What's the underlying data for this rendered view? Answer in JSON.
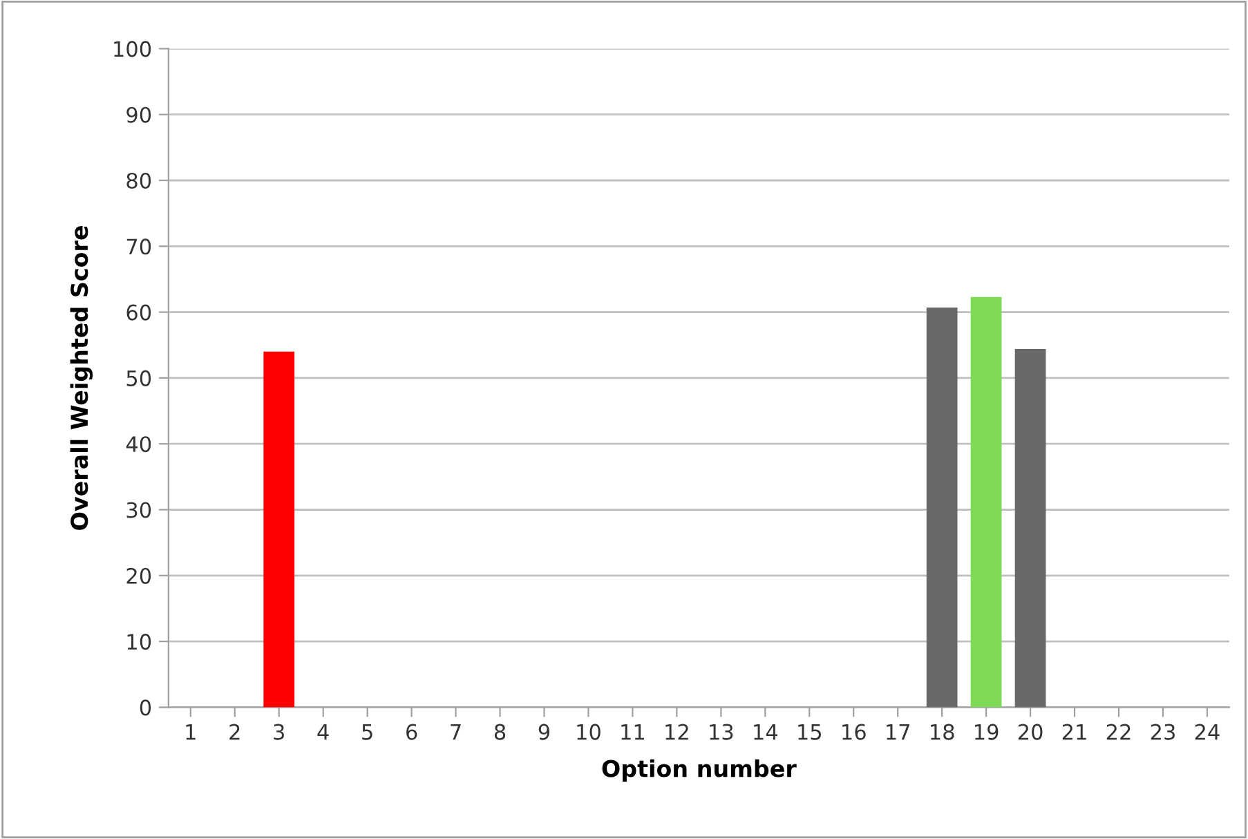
{
  "chart_data": {
    "type": "bar",
    "xlabel": "Option number",
    "ylabel": "Overall Weighted Score",
    "categories": [
      "1",
      "2",
      "3",
      "4",
      "5",
      "6",
      "7",
      "8",
      "9",
      "10",
      "11",
      "12",
      "13",
      "14",
      "15",
      "16",
      "17",
      "18",
      "19",
      "20",
      "21",
      "22",
      "23",
      "24"
    ],
    "values": [
      null,
      null,
      54.0,
      null,
      null,
      null,
      null,
      null,
      null,
      null,
      null,
      null,
      null,
      null,
      null,
      null,
      null,
      60.7,
      62.3,
      54.4,
      null,
      null,
      null,
      null
    ],
    "colors": [
      "#696969",
      "#696969",
      "#ff0000",
      "#696969",
      "#696969",
      "#696969",
      "#696969",
      "#696969",
      "#696969",
      "#696969",
      "#696969",
      "#696969",
      "#696969",
      "#696969",
      "#696969",
      "#696969",
      "#696969",
      "#696969",
      "#7ed957",
      "#696969",
      "#696969",
      "#696969",
      "#696969",
      "#696969"
    ],
    "ylim": [
      0,
      100
    ],
    "yticks": [
      0,
      10,
      20,
      30,
      40,
      50,
      60,
      70,
      80,
      90,
      100
    ],
    "grid": "y"
  }
}
